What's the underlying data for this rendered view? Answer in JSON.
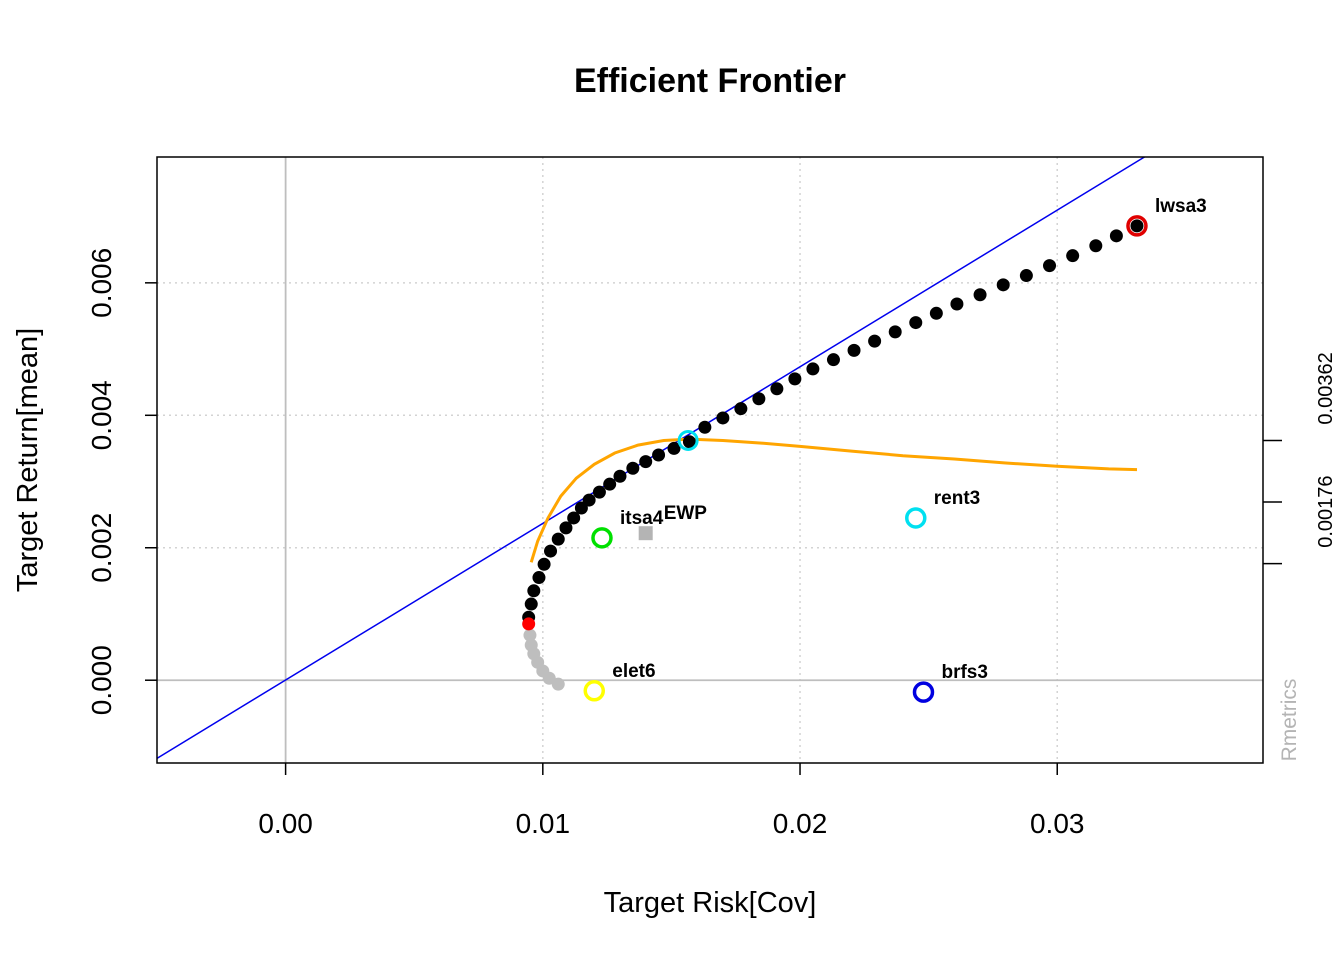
{
  "chart_data": {
    "type": "scatter",
    "title": "Efficient Frontier",
    "xlabel": "Target Risk[Cov]",
    "ylabel": "Target Return[mean]",
    "xlim": [
      -0.005,
      0.038
    ],
    "ylim": [
      -0.00125,
      0.0079
    ],
    "x_ticks": [
      {
        "value": 0.0,
        "label": "0.00"
      },
      {
        "value": 0.01,
        "label": "0.01"
      },
      {
        "value": 0.02,
        "label": "0.02"
      },
      {
        "value": 0.03,
        "label": "0.03"
      }
    ],
    "y_ticks": [
      {
        "value": 0.0,
        "label": "0.000"
      },
      {
        "value": 0.002,
        "label": "0.002"
      },
      {
        "value": 0.004,
        "label": "0.004"
      },
      {
        "value": 0.006,
        "label": "0.006"
      }
    ],
    "right_axis": {
      "tick_values": [
        0.00176,
        0.00269,
        0.00362
      ],
      "labeled_ticks": [
        {
          "value": 0.00176,
          "label": "0.00176"
        },
        {
          "value": 0.00362,
          "label": "0.00362"
        }
      ]
    },
    "grid": true,
    "efficient_frontier": [
      [
        0.00945,
        0.00095
      ],
      [
        0.00955,
        0.00115
      ],
      [
        0.00965,
        0.00135
      ],
      [
        0.00985,
        0.00155
      ],
      [
        0.01005,
        0.00175
      ],
      [
        0.0103,
        0.00195
      ],
      [
        0.0106,
        0.00213
      ],
      [
        0.0109,
        0.0023
      ],
      [
        0.0112,
        0.00245
      ],
      [
        0.0115,
        0.0026
      ],
      [
        0.0118,
        0.00272
      ],
      [
        0.0122,
        0.00284
      ],
      [
        0.0126,
        0.00296
      ],
      [
        0.013,
        0.00308
      ],
      [
        0.0135,
        0.0032
      ],
      [
        0.014,
        0.0033
      ],
      [
        0.0145,
        0.0034
      ],
      [
        0.0151,
        0.0035
      ],
      [
        0.0157,
        0.0036
      ],
      [
        0.0163,
        0.00382
      ],
      [
        0.017,
        0.00396
      ],
      [
        0.0177,
        0.0041
      ],
      [
        0.0184,
        0.00425
      ],
      [
        0.0191,
        0.0044
      ],
      [
        0.0198,
        0.00455
      ],
      [
        0.0205,
        0.0047
      ],
      [
        0.0213,
        0.00484
      ],
      [
        0.0221,
        0.00498
      ],
      [
        0.0229,
        0.00512
      ],
      [
        0.0237,
        0.00526
      ],
      [
        0.0245,
        0.0054
      ],
      [
        0.0253,
        0.00554
      ],
      [
        0.0261,
        0.00568
      ],
      [
        0.027,
        0.00582
      ],
      [
        0.0279,
        0.00597
      ],
      [
        0.0288,
        0.00611
      ],
      [
        0.0297,
        0.00626
      ],
      [
        0.0306,
        0.00641
      ],
      [
        0.0315,
        0.00656
      ],
      [
        0.0323,
        0.00671
      ],
      [
        0.0331,
        0.00686
      ]
    ],
    "min_variance_portfolio": [
      0.00945,
      0.00085
    ],
    "inefficient_frontier": [
      [
        0.0095,
        0.00068
      ],
      [
        0.00955,
        0.00053
      ],
      [
        0.00965,
        0.0004
      ],
      [
        0.0098,
        0.00027
      ],
      [
        0.01,
        0.00014
      ],
      [
        0.01025,
        3e-05
      ],
      [
        0.0106,
        -6e-05
      ]
    ],
    "tangency_line": [
      [
        -0.005,
        -0.00118
      ],
      [
        0.038,
        0.00899
      ]
    ],
    "tangency_portfolio": [
      0.01565,
      0.00362
    ],
    "sharpe_ratio_curve": [
      [
        0.00955,
        0.00178
      ],
      [
        0.0098,
        0.0021
      ],
      [
        0.0102,
        0.00245
      ],
      [
        0.0107,
        0.00278
      ],
      [
        0.0113,
        0.00305
      ],
      [
        0.012,
        0.00326
      ],
      [
        0.0128,
        0.00343
      ],
      [
        0.0137,
        0.00355
      ],
      [
        0.0147,
        0.00362
      ],
      [
        0.0157,
        0.00364
      ],
      [
        0.017,
        0.00362
      ],
      [
        0.0185,
        0.00358
      ],
      [
        0.02,
        0.00353
      ],
      [
        0.022,
        0.00346
      ],
      [
        0.024,
        0.00339
      ],
      [
        0.026,
        0.00334
      ],
      [
        0.028,
        0.00328
      ],
      [
        0.03,
        0.00323
      ],
      [
        0.032,
        0.00319
      ],
      [
        0.0331,
        0.00318
      ]
    ],
    "assets": [
      {
        "name": "lwsa3",
        "x": 0.0331,
        "y": 0.00686,
        "color": "#e00000"
      },
      {
        "name": "rent3",
        "x": 0.0245,
        "y": 0.00245,
        "color": "#00e0f0"
      },
      {
        "name": "itsa4",
        "x": 0.0123,
        "y": 0.00215,
        "color": "#00e000"
      },
      {
        "name": "elet6",
        "x": 0.012,
        "y": -0.00016,
        "color": "#ffff00"
      },
      {
        "name": "brfs3",
        "x": 0.0248,
        "y": -0.00018,
        "color": "#0000e0"
      }
    ],
    "equal_weights_portfolio": {
      "name": "EWP",
      "x": 0.014,
      "y": 0.00222,
      "color": "#b4b4b4"
    },
    "credit": "Rmetrics",
    "colors": {
      "frontier": "#000000",
      "min_variance": "#ff0000",
      "inefficient": "#bebebe",
      "tangency_line": "#0000ee",
      "sharpe_curve": "#ffa500",
      "tangency_marker": "#00e0f0",
      "grid": "#d3d3d3",
      "credit": "#b4b4b4"
    }
  }
}
